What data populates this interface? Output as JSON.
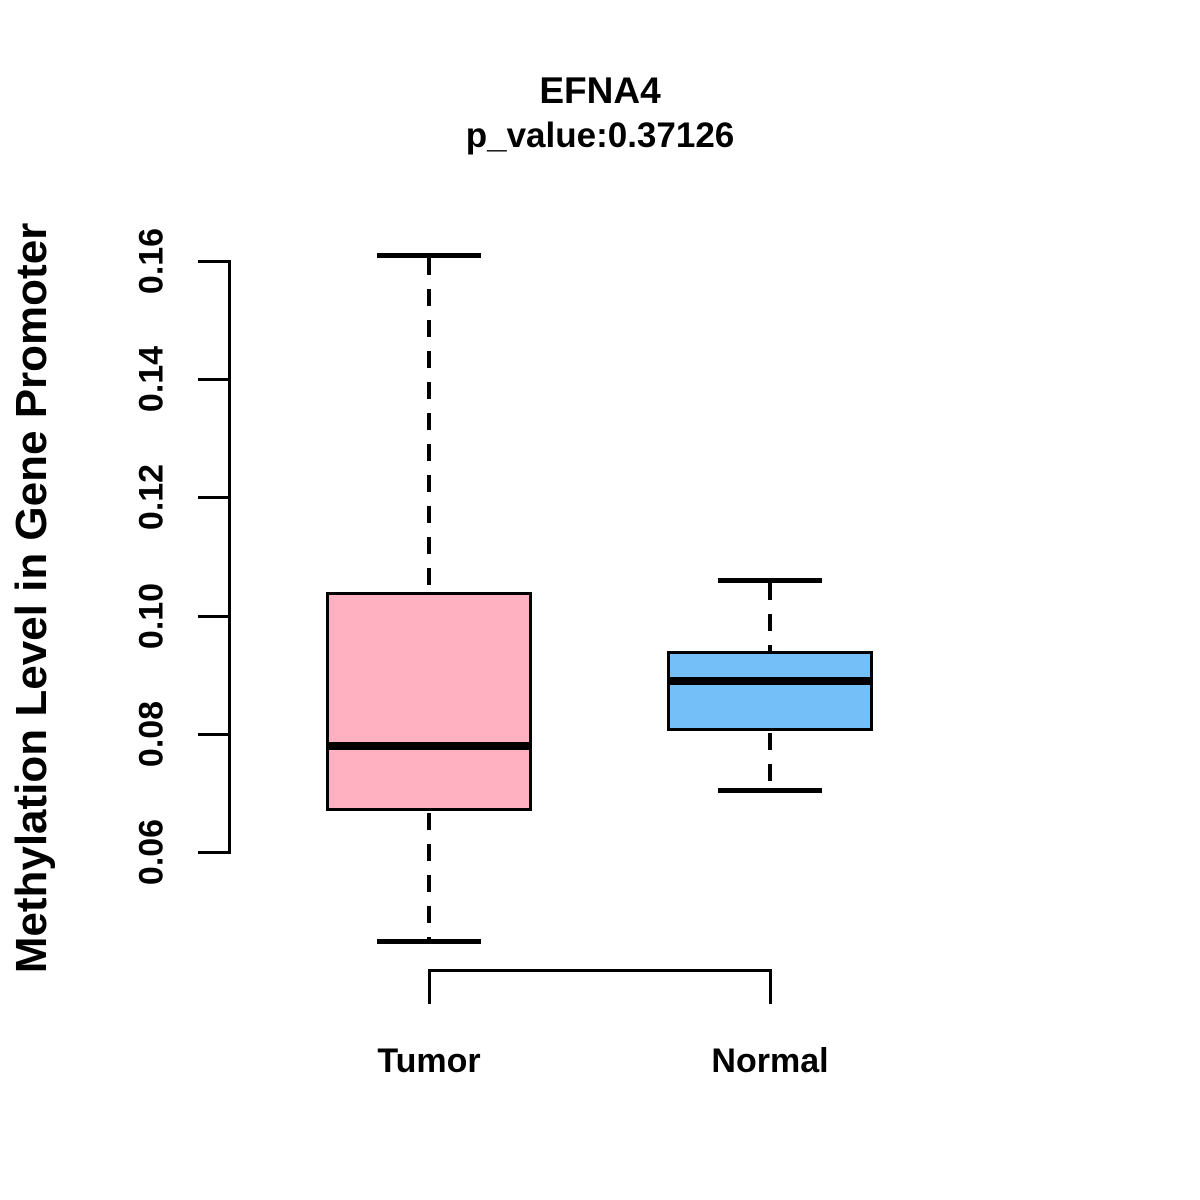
{
  "figure": {
    "background": "#FFFFFF",
    "line_color": "#000000"
  },
  "chart_data": {
    "type": "boxplot",
    "title": "EFNA4",
    "subtitle": "p_value:0.37126",
    "ylabel": "Methylation Level in Gene Promoter",
    "xlabel": "",
    "categories": [
      "Tumor",
      "Normal"
    ],
    "grid": false,
    "legend": null,
    "y_axis": {
      "min": 0.06,
      "max": 0.16,
      "ticks": [
        {
          "value": 0.06,
          "label": "0.06"
        },
        {
          "value": 0.08,
          "label": "0.08"
        },
        {
          "value": 0.1,
          "label": "0.10"
        },
        {
          "value": 0.12,
          "label": "0.12"
        },
        {
          "value": 0.14,
          "label": "0.14"
        },
        {
          "value": 0.16,
          "label": "0.16"
        }
      ]
    },
    "series": [
      {
        "name": "Tumor",
        "color": "#FFB0C1",
        "whisker_low": 0.045,
        "q1": 0.067,
        "median": 0.078,
        "q3": 0.104,
        "whisker_high": 0.161
      },
      {
        "name": "Normal",
        "color": "#74BFF7",
        "whisker_low": 0.0705,
        "q1": 0.0805,
        "median": 0.089,
        "q3": 0.094,
        "whisker_high": 0.106
      }
    ]
  }
}
